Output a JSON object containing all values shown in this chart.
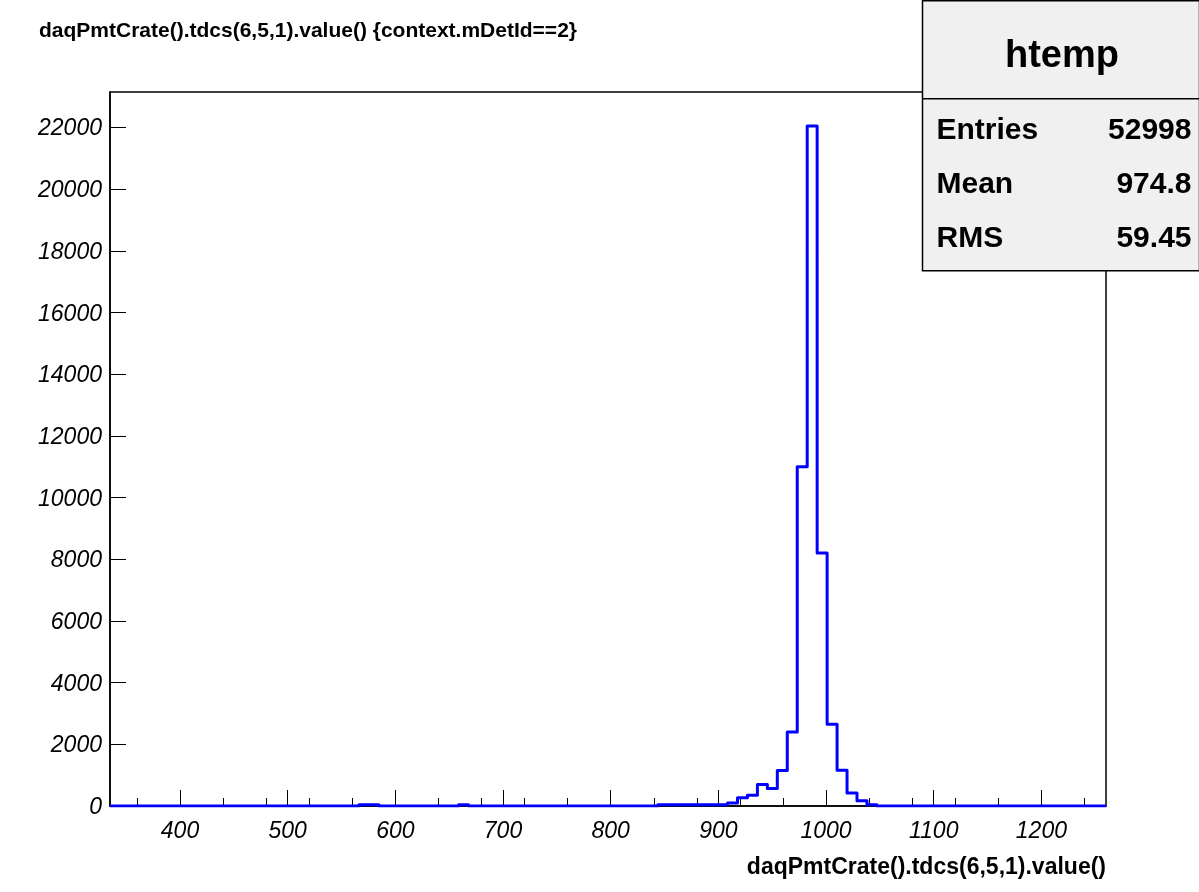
{
  "chart_data": {
    "type": "histogram",
    "title": "daqPmtCrate().tdcs(6,5,1).value() {context.mDetId==2}",
    "xlabel": "daqPmtCrate().tdcs(6,5,1).value()",
    "bins": [
      335,
      566.25,
      584.75,
      658.75,
      668,
      843.75,
      908.5,
      917.75,
      927,
      936.25,
      945.5,
      954.75,
      964,
      973.25,
      982.5,
      991.75,
      1001,
      1010.25,
      1019.5,
      1028.75,
      1038,
      1047.25,
      1260
    ],
    "values": [
      0,
      40,
      0,
      40,
      0,
      40,
      100,
      270,
      350,
      700,
      570,
      1150,
      2400,
      11000,
      22050,
      8200,
      2650,
      1160,
      420,
      170,
      40,
      0
    ],
    "color": "#0000ff",
    "xlim": [
      335,
      1260
    ],
    "xticks": [
      400,
      500,
      600,
      700,
      800,
      900,
      1000,
      1100,
      1200
    ],
    "ylim": [
      0,
      23150
    ],
    "yticks": [
      0,
      2000,
      4000,
      6000,
      8000,
      10000,
      12000,
      14000,
      16000,
      18000,
      20000,
      22000
    ],
    "annotations": [
      "htemp",
      "Entries",
      "52998",
      "Mean",
      "974.8",
      "RMS",
      "59.45"
    ],
    "grid": false
  }
}
